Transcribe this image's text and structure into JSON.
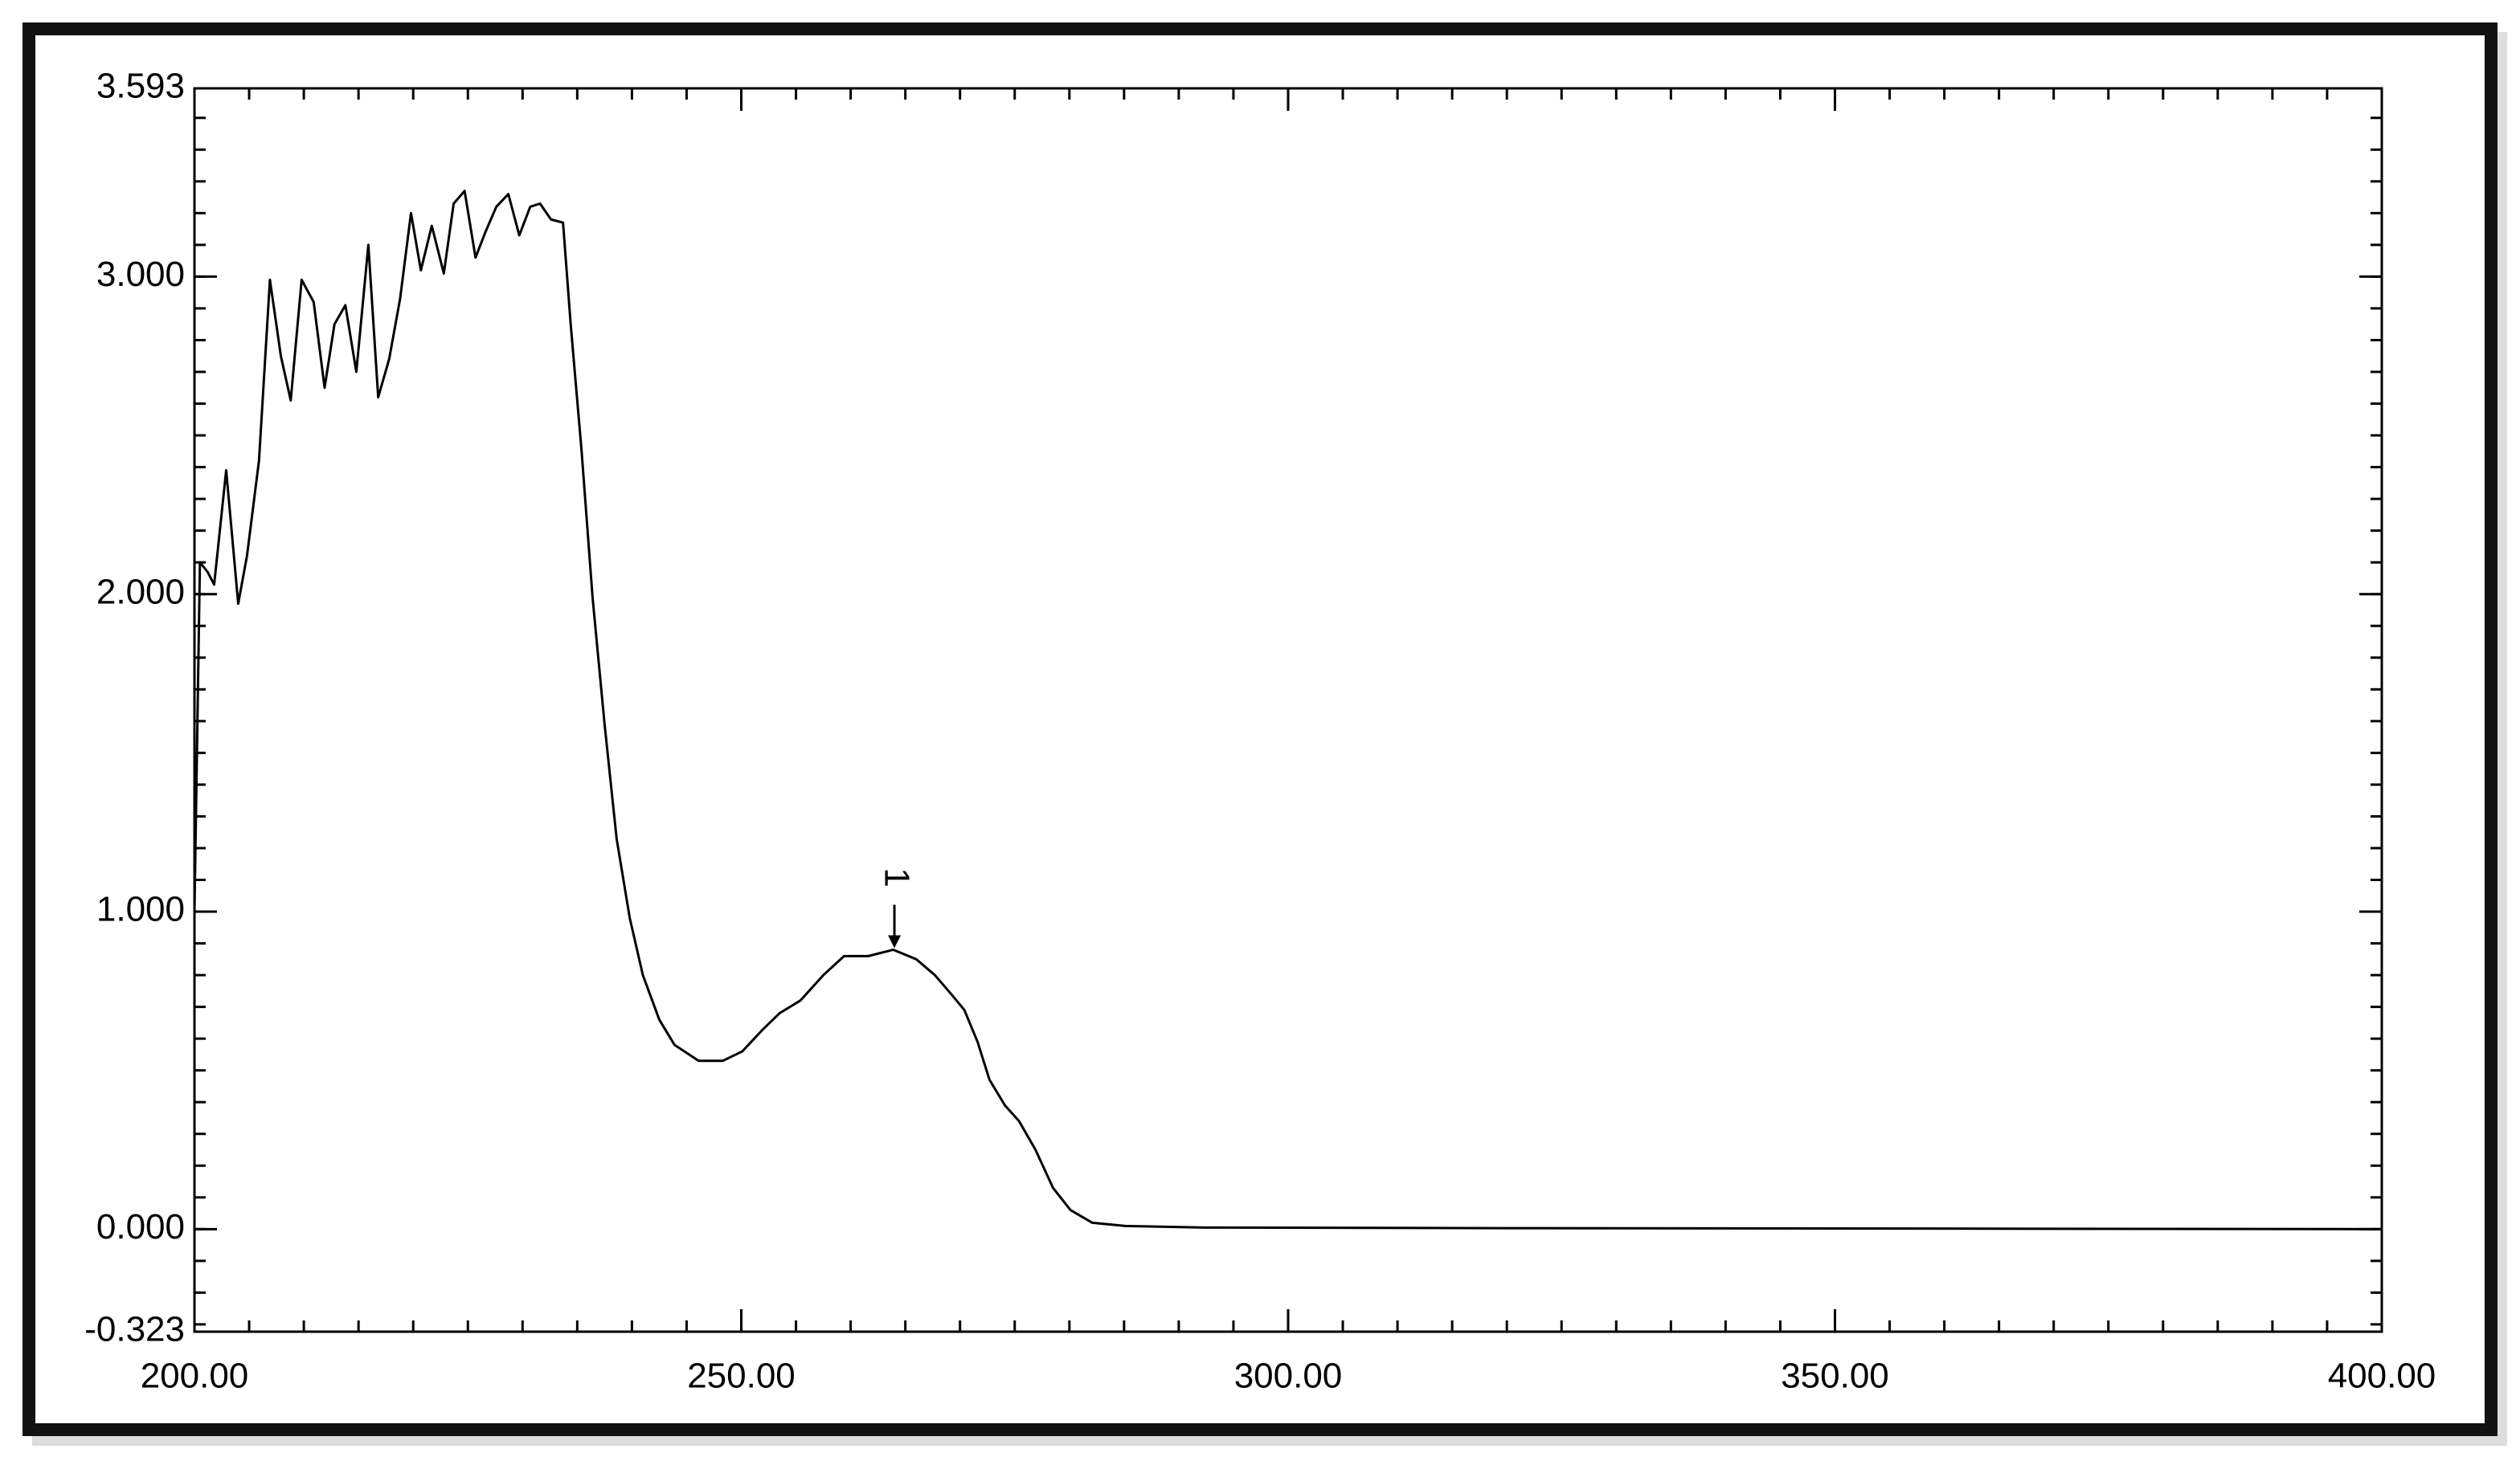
{
  "chart_data": {
    "type": "line",
    "x": [
      200.0,
      200.5,
      201.2,
      201.8,
      202.9,
      204.0,
      204.8,
      205.9,
      206.9,
      207.9,
      208.8,
      209.8,
      210.9,
      211.9,
      212.8,
      213.8,
      214.8,
      215.9,
      216.8,
      217.8,
      218.8,
      219.8,
      220.7,
      221.7,
      222.8,
      223.7,
      224.7,
      225.7,
      226.6,
      227.6,
      228.7,
      229.7,
      230.7,
      231.6,
      232.6,
      233.7,
      234.4,
      235.4,
      236.4,
      237.5,
      238.6,
      239.8,
      241.0,
      242.5,
      243.9,
      246.1,
      248.3,
      250.1,
      252.0,
      253.5,
      255.4,
      257.5,
      259.4,
      261.6,
      263.9,
      266.0,
      267.7,
      269.2,
      270.4,
      271.6,
      272.7,
      274.1,
      275.4,
      276.9,
      278.5,
      280.1,
      282.1,
      285.1,
      292.4,
      320.0,
      350.0,
      400.0
    ],
    "values": [
      1.0,
      2.1,
      2.07,
      2.03,
      2.39,
      1.97,
      2.12,
      2.42,
      2.99,
      2.75,
      2.61,
      2.99,
      2.92,
      2.65,
      2.85,
      2.91,
      2.7,
      3.1,
      2.62,
      2.74,
      2.93,
      3.2,
      3.02,
      3.16,
      3.01,
      3.23,
      3.27,
      3.06,
      3.14,
      3.22,
      3.26,
      3.13,
      3.22,
      3.23,
      3.18,
      3.17,
      2.85,
      2.45,
      1.99,
      1.59,
      1.23,
      0.98,
      0.8,
      0.66,
      0.58,
      0.53,
      0.53,
      0.56,
      0.63,
      0.68,
      0.72,
      0.8,
      0.86,
      0.86,
      0.88,
      0.85,
      0.8,
      0.74,
      0.69,
      0.59,
      0.47,
      0.39,
      0.34,
      0.25,
      0.13,
      0.06,
      0.02,
      0.01,
      0.005,
      0.003,
      0.002,
      0.0
    ],
    "color": "#000000",
    "xlim": [
      200,
      400
    ],
    "xticks": [
      {
        "value": 200,
        "label": "200.00"
      },
      {
        "value": 250,
        "label": "250.00"
      },
      {
        "value": 300,
        "label": "300.00"
      },
      {
        "value": 350,
        "label": "350.00"
      },
      {
        "value": 400,
        "label": "400.00"
      }
    ],
    "ylim": [
      -0.323,
      3.593
    ],
    "yticks": [
      {
        "value": -0.323,
        "label": "-0.323"
      },
      {
        "value": 0,
        "label": "0.000"
      },
      {
        "value": 1,
        "label": "1.000"
      },
      {
        "value": 2,
        "label": "2.000"
      },
      {
        "value": 3,
        "label": "3.000"
      },
      {
        "value": 3.593,
        "label": "3.593"
      }
    ],
    "x_minor_step": 5,
    "y_minor_step": 0.1,
    "annotations": [
      {
        "x": 264,
        "y": 0.88,
        "label": "1"
      }
    ]
  }
}
